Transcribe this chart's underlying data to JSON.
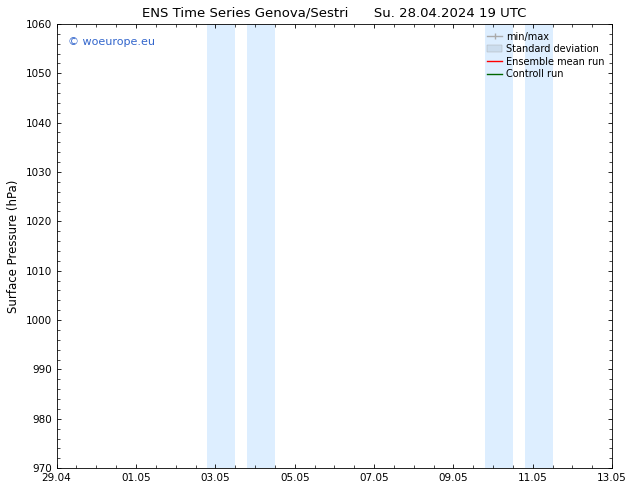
{
  "title": "ENS Time Series Genova/Sestri",
  "title2": "Su. 28.04.2024 19 UTC",
  "ylabel": "Surface Pressure (hPa)",
  "ylim": [
    970,
    1060
  ],
  "yticks": [
    970,
    980,
    990,
    1000,
    1010,
    1020,
    1030,
    1040,
    1050,
    1060
  ],
  "xlim_start": 0,
  "xlim_end": 14,
  "xtick_positions": [
    0,
    2,
    4,
    6,
    8,
    10,
    12,
    14
  ],
  "xtick_labels": [
    "29.04",
    "01.05",
    "03.05",
    "05.05",
    "07.05",
    "09.05",
    "11.05",
    "13.05"
  ],
  "shaded_bands": [
    {
      "x_start": 3.8,
      "x_end": 4.5
    },
    {
      "x_start": 4.8,
      "x_end": 5.5
    },
    {
      "x_start": 10.8,
      "x_end": 11.5
    },
    {
      "x_start": 11.8,
      "x_end": 12.5
    }
  ],
  "shaded_color": "#ddeeff",
  "background_color": "#ffffff",
  "watermark_text": "© woeurope.eu",
  "watermark_color": "#3366cc",
  "legend_items": [
    {
      "label": "min/max",
      "color": "#aaaaaa",
      "lw": 1.0,
      "style": "line_with_caps"
    },
    {
      "label": "Standard deviation",
      "color": "#ccddee",
      "lw": 6,
      "style": "band"
    },
    {
      "label": "Ensemble mean run",
      "color": "#ff0000",
      "lw": 1.0,
      "style": "line"
    },
    {
      "label": "Controll run",
      "color": "#006600",
      "lw": 1.0,
      "style": "line"
    }
  ],
  "title_fontsize": 9.5,
  "tick_fontsize": 7.5,
  "label_fontsize": 8.5,
  "watermark_fontsize": 8,
  "legend_fontsize": 7
}
